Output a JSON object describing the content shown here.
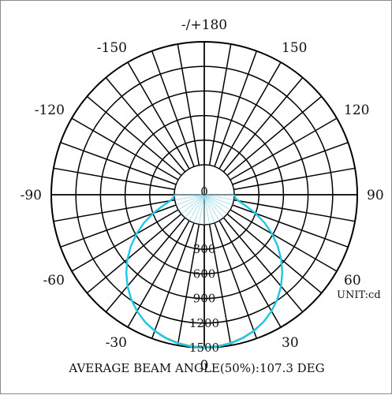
{
  "chart_data": {
    "type": "polar",
    "unit_label": "UNIT:cd",
    "caption": "AVERAGE BEAM ANGLE(50%):107.3 DEG",
    "angle_ticks": [
      {
        "deg": 180,
        "label": "-/+180"
      },
      {
        "deg": 150,
        "label": "150"
      },
      {
        "deg": -150,
        "label": "-150"
      },
      {
        "deg": 120,
        "label": "120"
      },
      {
        "deg": -120,
        "label": "-120"
      },
      {
        "deg": 90,
        "label": "90"
      },
      {
        "deg": -90,
        "label": "-90"
      },
      {
        "deg": 60,
        "label": "60"
      },
      {
        "deg": -60,
        "label": "-60"
      },
      {
        "deg": 30,
        "label": "30"
      },
      {
        "deg": -30,
        "label": "-30"
      },
      {
        "deg": 0,
        "label": "0"
      }
    ],
    "radial_ticks": [
      "0",
      "300",
      "600",
      "900",
      "1200",
      "1500"
    ],
    "radial_range": [
      0,
      1500
    ],
    "spoke_step_deg": 10,
    "colors": {
      "grid": "#000000",
      "series_1": "#1ec8e6",
      "series_2": "#2fa8c9",
      "series_3": "#c9c04a"
    },
    "series": [
      {
        "angles": [
          0,
          5,
          10,
          15,
          20,
          25,
          30,
          35,
          40,
          45,
          50,
          55,
          60,
          65,
          70,
          75,
          80,
          85,
          90
        ],
        "values": [
          1500,
          1494,
          1476,
          1446,
          1403,
          1346,
          1274,
          1189,
          1091,
          979,
          858,
          727,
          589,
          446,
          300,
          160,
          55,
          12,
          0
        ]
      },
      {
        "angles": [
          0,
          5,
          10,
          15,
          20,
          25,
          30,
          35,
          40,
          45,
          50,
          55,
          60,
          65,
          70,
          75,
          80,
          85,
          90
        ],
        "values": [
          1495,
          1489,
          1471,
          1441,
          1398,
          1343,
          1272,
          1186,
          1089,
          978,
          857,
          726,
          588,
          445,
          299,
          158,
          54,
          11,
          0
        ]
      },
      {
        "angles": [
          0,
          5,
          10,
          15,
          20,
          25,
          30,
          35,
          40,
          45,
          50,
          55,
          60,
          65,
          70,
          75,
          80,
          85,
          90
        ],
        "values": [
          1490,
          1485,
          1468,
          1438,
          1396,
          1341,
          1270,
          1185,
          1087,
          976,
          855,
          724,
          586,
          443,
          297,
          156,
          53,
          11,
          0
        ]
      }
    ]
  }
}
